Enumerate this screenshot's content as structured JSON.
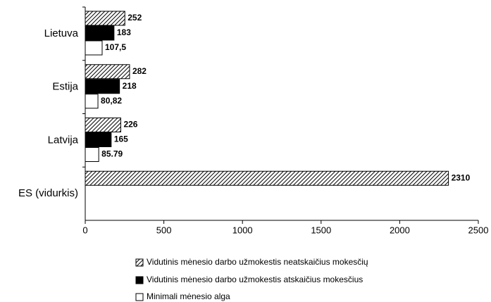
{
  "chart_data": {
    "type": "bar",
    "orientation": "horizontal",
    "categories": [
      "Lietuva",
      "Estija",
      "Latvija",
      "ES (vidurkis)"
    ],
    "series": [
      {
        "name": "Vidutinis mėnesio darbo užmokestis neatskaičius mokesčių",
        "color": "hatched",
        "values": [
          252,
          282,
          226,
          2310
        ]
      },
      {
        "name": "Vidutinis mėnesio darbo užmokestis atskaičius mokesčius",
        "color": "#000000",
        "values": [
          183,
          218,
          165,
          null
        ]
      },
      {
        "name": "Minimali mėnesio alga",
        "color": "#ffffff",
        "values": [
          107.5,
          80.82,
          85.79,
          null
        ],
        "value_labels": [
          "107,5",
          "80,82",
          "85.79",
          null
        ]
      }
    ],
    "xlim": [
      0,
      2500
    ],
    "xticks": [
      0,
      500,
      1000,
      1500,
      2000,
      2500
    ],
    "grid": false,
    "legend": "bottom"
  }
}
